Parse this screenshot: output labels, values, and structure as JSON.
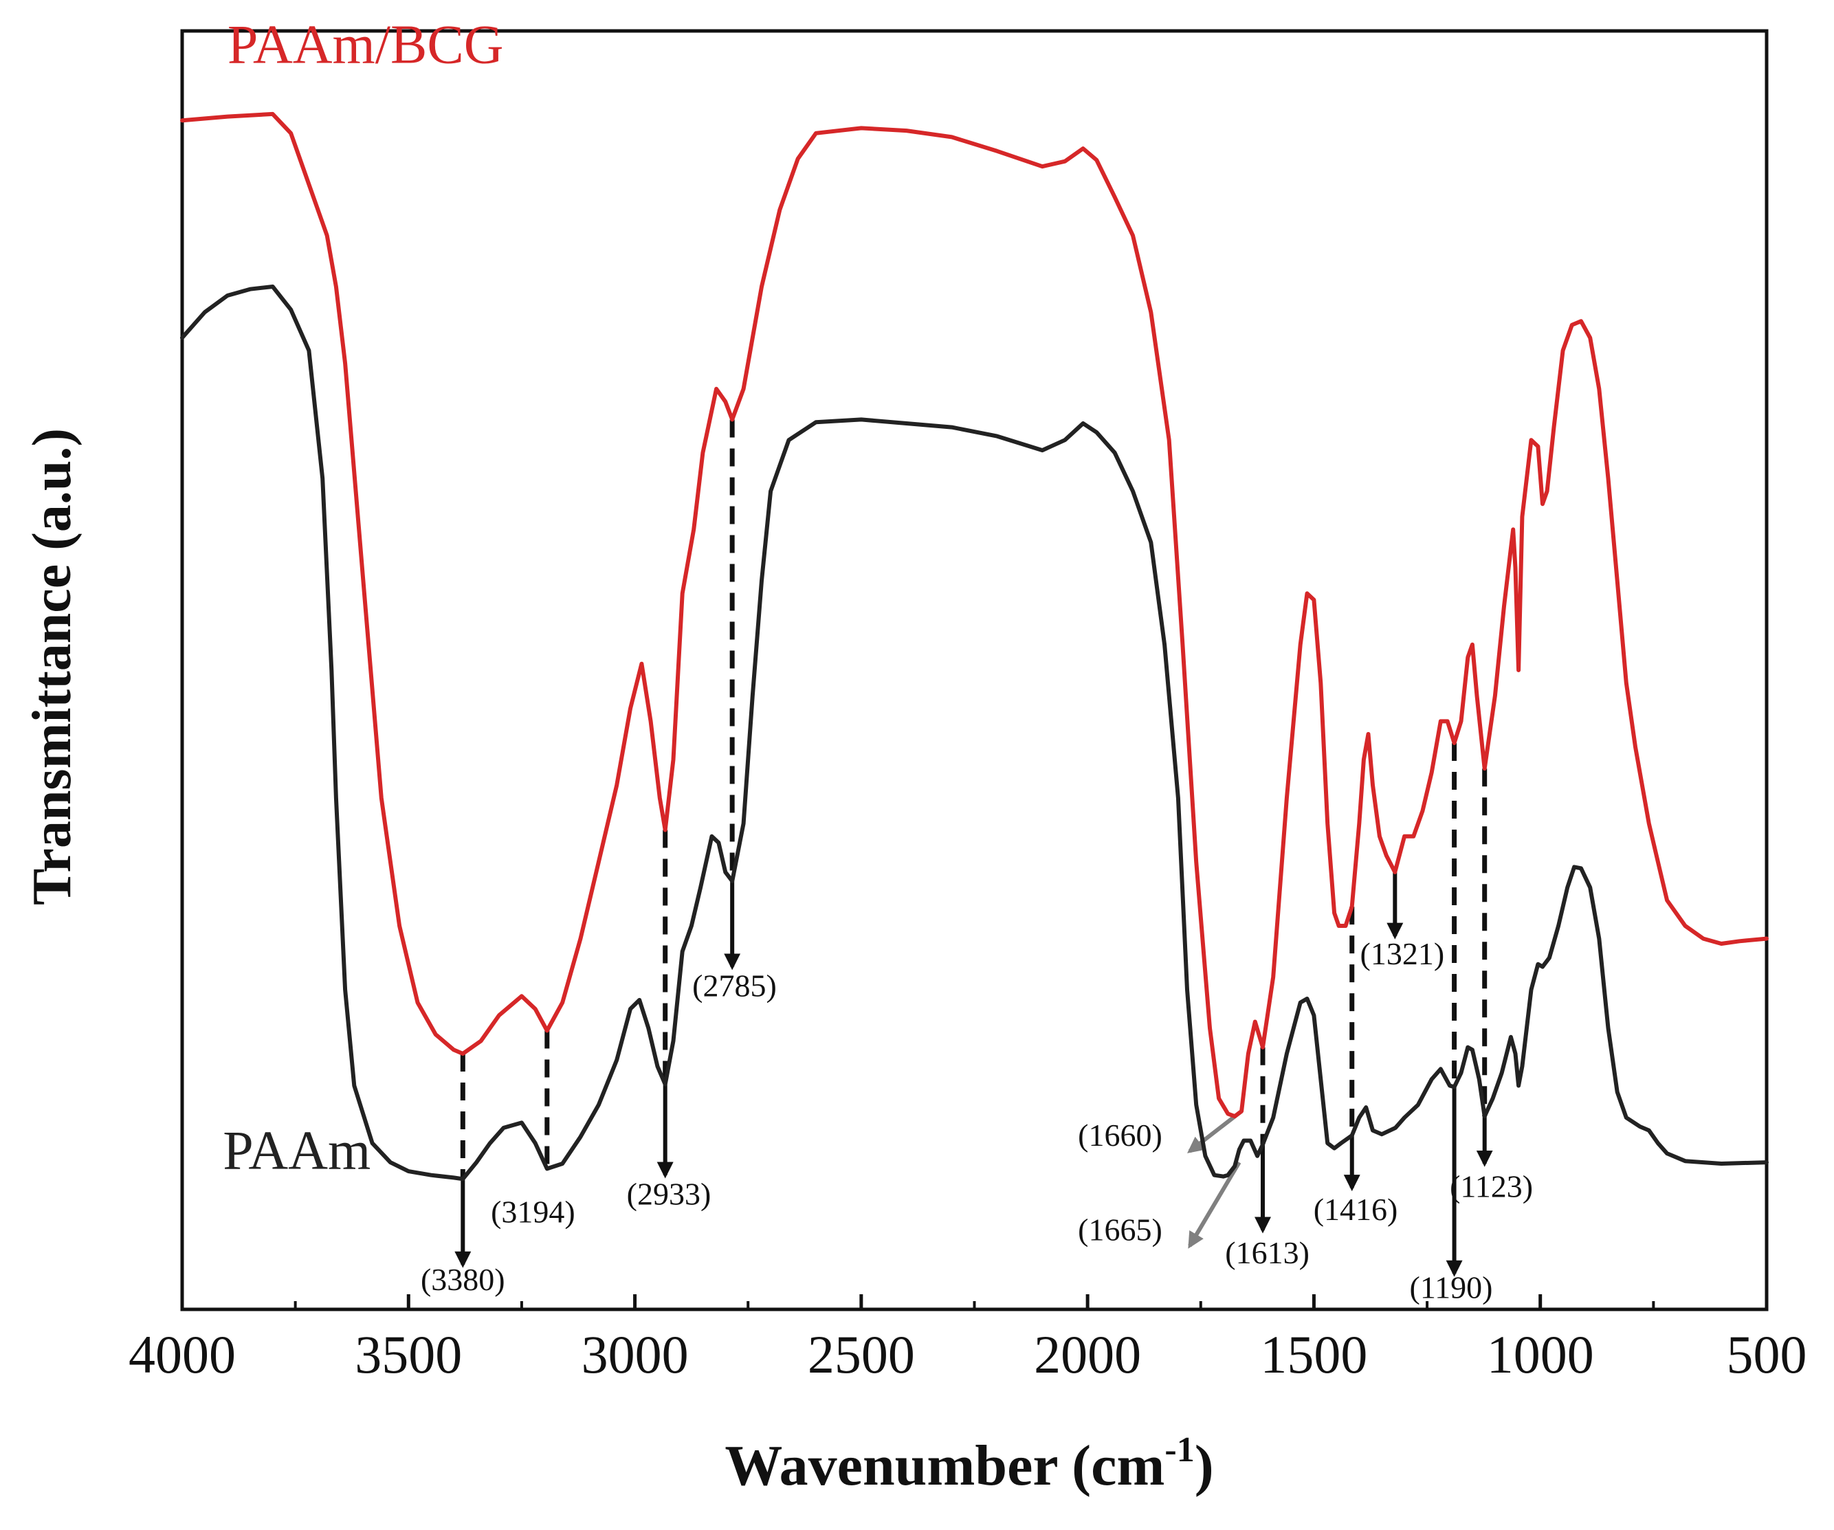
{
  "chart_data": {
    "type": "line",
    "xlabel": "Wavenumber (cm",
    "xlabel_sup": "-1",
    "xlabel_close": ")",
    "ylabel": "Transmittance (a.u.)",
    "xlim": [
      4000,
      500
    ],
    "ylim": [
      0,
      100
    ],
    "y_tick_labels": false,
    "x_ticks": [
      4000,
      3500,
      3000,
      2500,
      2000,
      1500,
      1000,
      500
    ],
    "x_tick_labels": [
      "4000",
      "3500",
      "3000",
      "2500",
      "2000",
      "1500",
      "1000",
      "500"
    ],
    "colors": {
      "PAAm/BCG": "#d62728",
      "PAAm": "#222222",
      "arrow": "#111111",
      "arrow_gray": "#808080"
    },
    "series": [
      {
        "name": "PAAm/BCG",
        "color": "#d62728",
        "points": [
          [
            4000,
            93
          ],
          [
            3900,
            93.3
          ],
          [
            3800,
            93.5
          ],
          [
            3760,
            92
          ],
          [
            3720,
            88
          ],
          [
            3680,
            84
          ],
          [
            3660,
            80
          ],
          [
            3640,
            74
          ],
          [
            3600,
            57
          ],
          [
            3560,
            40
          ],
          [
            3520,
            30
          ],
          [
            3480,
            24
          ],
          [
            3440,
            21.5
          ],
          [
            3400,
            20.3
          ],
          [
            3380,
            20
          ],
          [
            3340,
            21
          ],
          [
            3300,
            23
          ],
          [
            3250,
            24.5
          ],
          [
            3220,
            23.5
          ],
          [
            3194,
            21.8
          ],
          [
            3160,
            24
          ],
          [
            3120,
            29
          ],
          [
            3080,
            35
          ],
          [
            3040,
            41
          ],
          [
            3010,
            47
          ],
          [
            2985,
            50.5
          ],
          [
            2965,
            46
          ],
          [
            2945,
            40
          ],
          [
            2933,
            37.5
          ],
          [
            2915,
            43
          ],
          [
            2895,
            56
          ],
          [
            2870,
            61
          ],
          [
            2850,
            67
          ],
          [
            2820,
            72
          ],
          [
            2800,
            71
          ],
          [
            2785,
            69.6
          ],
          [
            2760,
            72
          ],
          [
            2720,
            80
          ],
          [
            2680,
            86
          ],
          [
            2640,
            90
          ],
          [
            2600,
            92
          ],
          [
            2500,
            92.4
          ],
          [
            2400,
            92.2
          ],
          [
            2300,
            91.7
          ],
          [
            2200,
            90.6
          ],
          [
            2100,
            89.4
          ],
          [
            2050,
            89.8
          ],
          [
            2010,
            90.8
          ],
          [
            1980,
            89.9
          ],
          [
            1940,
            87
          ],
          [
            1900,
            84
          ],
          [
            1860,
            78
          ],
          [
            1820,
            68
          ],
          [
            1790,
            52
          ],
          [
            1760,
            35
          ],
          [
            1730,
            22
          ],
          [
            1710,
            16.5
          ],
          [
            1690,
            15.3
          ],
          [
            1675,
            15.1
          ],
          [
            1660,
            15.5
          ],
          [
            1645,
            20
          ],
          [
            1630,
            22.5
          ],
          [
            1613,
            20.5
          ],
          [
            1590,
            26
          ],
          [
            1560,
            40
          ],
          [
            1530,
            52
          ],
          [
            1515,
            56
          ],
          [
            1500,
            55.5
          ],
          [
            1485,
            49
          ],
          [
            1470,
            38
          ],
          [
            1455,
            31
          ],
          [
            1445,
            30
          ],
          [
            1430,
            30
          ],
          [
            1416,
            31.5
          ],
          [
            1400,
            38
          ],
          [
            1390,
            43
          ],
          [
            1380,
            45
          ],
          [
            1370,
            41
          ],
          [
            1355,
            37
          ],
          [
            1340,
            35.5
          ],
          [
            1321,
            34.2
          ],
          [
            1300,
            37
          ],
          [
            1280,
            37
          ],
          [
            1260,
            39
          ],
          [
            1240,
            42
          ],
          [
            1220,
            46
          ],
          [
            1205,
            46
          ],
          [
            1190,
            44.3
          ],
          [
            1175,
            46
          ],
          [
            1160,
            51
          ],
          [
            1150,
            52
          ],
          [
            1140,
            48
          ],
          [
            1123,
            42.3
          ],
          [
            1100,
            48
          ],
          [
            1080,
            55
          ],
          [
            1060,
            61
          ],
          [
            1055,
            58
          ],
          [
            1048,
            50
          ],
          [
            1040,
            62
          ],
          [
            1020,
            68
          ],
          [
            1005,
            67.5
          ],
          [
            995,
            63
          ],
          [
            985,
            64
          ],
          [
            970,
            69
          ],
          [
            950,
            75
          ],
          [
            930,
            77
          ],
          [
            910,
            77.3
          ],
          [
            890,
            76
          ],
          [
            870,
            72
          ],
          [
            850,
            65
          ],
          [
            830,
            57
          ],
          [
            810,
            49
          ],
          [
            790,
            44
          ],
          [
            760,
            38
          ],
          [
            740,
            35
          ],
          [
            720,
            32
          ],
          [
            680,
            30
          ],
          [
            640,
            29
          ],
          [
            600,
            28.6
          ],
          [
            560,
            28.8
          ],
          [
            500,
            29
          ]
        ]
      },
      {
        "name": "PAAm",
        "color": "#222222",
        "points": [
          [
            4000,
            76
          ],
          [
            3950,
            78
          ],
          [
            3900,
            79.3
          ],
          [
            3850,
            79.8
          ],
          [
            3800,
            80
          ],
          [
            3760,
            78.2
          ],
          [
            3720,
            75
          ],
          [
            3690,
            65
          ],
          [
            3670,
            50
          ],
          [
            3660,
            40
          ],
          [
            3640,
            25
          ],
          [
            3620,
            17.5
          ],
          [
            3580,
            13
          ],
          [
            3540,
            11.5
          ],
          [
            3500,
            10.8
          ],
          [
            3450,
            10.5
          ],
          [
            3400,
            10.3
          ],
          [
            3380,
            10.2
          ],
          [
            3350,
            11.5
          ],
          [
            3320,
            13
          ],
          [
            3290,
            14.2
          ],
          [
            3250,
            14.6
          ],
          [
            3220,
            13
          ],
          [
            3194,
            11
          ],
          [
            3160,
            11.4
          ],
          [
            3120,
            13.5
          ],
          [
            3080,
            16
          ],
          [
            3040,
            19.5
          ],
          [
            3010,
            23.5
          ],
          [
            2990,
            24.2
          ],
          [
            2970,
            22
          ],
          [
            2950,
            19
          ],
          [
            2933,
            17.6
          ],
          [
            2915,
            21
          ],
          [
            2895,
            28
          ],
          [
            2875,
            30
          ],
          [
            2855,
            33
          ],
          [
            2830,
            37
          ],
          [
            2815,
            36.5
          ],
          [
            2800,
            34.2
          ],
          [
            2785,
            33.5
          ],
          [
            2760,
            38
          ],
          [
            2740,
            48
          ],
          [
            2720,
            57
          ],
          [
            2700,
            64
          ],
          [
            2660,
            68
          ],
          [
            2600,
            69.4
          ],
          [
            2500,
            69.6
          ],
          [
            2400,
            69.3
          ],
          [
            2300,
            69
          ],
          [
            2200,
            68.3
          ],
          [
            2100,
            67.2
          ],
          [
            2050,
            68
          ],
          [
            2010,
            69.3
          ],
          [
            1980,
            68.6
          ],
          [
            1940,
            67
          ],
          [
            1900,
            64
          ],
          [
            1860,
            60
          ],
          [
            1830,
            52
          ],
          [
            1800,
            40
          ],
          [
            1780,
            25
          ],
          [
            1760,
            16
          ],
          [
            1740,
            12
          ],
          [
            1720,
            10.5
          ],
          [
            1700,
            10.4
          ],
          [
            1690,
            10.5
          ],
          [
            1675,
            11.2
          ],
          [
            1665,
            12.5
          ],
          [
            1655,
            13.2
          ],
          [
            1640,
            13.2
          ],
          [
            1625,
            12
          ],
          [
            1613,
            12.9
          ],
          [
            1590,
            15
          ],
          [
            1560,
            20
          ],
          [
            1530,
            24
          ],
          [
            1515,
            24.3
          ],
          [
            1500,
            23
          ],
          [
            1485,
            18
          ],
          [
            1470,
            13
          ],
          [
            1455,
            12.6
          ],
          [
            1440,
            13
          ],
          [
            1416,
            13.6
          ],
          [
            1400,
            15
          ],
          [
            1385,
            15.8
          ],
          [
            1370,
            14
          ],
          [
            1350,
            13.7
          ],
          [
            1320,
            14.2
          ],
          [
            1300,
            15
          ],
          [
            1270,
            16
          ],
          [
            1240,
            18
          ],
          [
            1220,
            18.8
          ],
          [
            1200,
            17.5
          ],
          [
            1190,
            17.4
          ],
          [
            1175,
            18.5
          ],
          [
            1160,
            20.5
          ],
          [
            1150,
            20.3
          ],
          [
            1135,
            18
          ],
          [
            1123,
            15.1
          ],
          [
            1105,
            16.5
          ],
          [
            1085,
            18.5
          ],
          [
            1065,
            21.3
          ],
          [
            1055,
            20
          ],
          [
            1048,
            17.5
          ],
          [
            1040,
            19
          ],
          [
            1020,
            25
          ],
          [
            1005,
            27
          ],
          [
            995,
            26.8
          ],
          [
            980,
            27.5
          ],
          [
            960,
            30
          ],
          [
            940,
            33
          ],
          [
            925,
            34.6
          ],
          [
            910,
            34.5
          ],
          [
            890,
            33
          ],
          [
            870,
            29
          ],
          [
            850,
            22
          ],
          [
            830,
            17
          ],
          [
            810,
            15
          ],
          [
            780,
            14.3
          ],
          [
            760,
            14
          ],
          [
            740,
            13
          ],
          [
            720,
            12.2
          ],
          [
            680,
            11.6
          ],
          [
            640,
            11.5
          ],
          [
            600,
            11.4
          ],
          [
            500,
            11.5
          ]
        ]
      }
    ],
    "series_labels": [
      {
        "text": "PAAm/BCG",
        "series": "PAAm/BCG",
        "x": 3900,
        "y": 97.5
      },
      {
        "text": "PAAm",
        "series": "PAAm",
        "x": 3910,
        "y": 11
      }
    ],
    "annotations": [
      {
        "label": "(3380)",
        "x": 3380,
        "line_from": 20,
        "line_to": 10.2,
        "arrow_to": 3.5,
        "label_x": 3380,
        "label_y": 1.5,
        "color": "#111111"
      },
      {
        "label": "(3194)",
        "x": 3194,
        "line_from": 21.8,
        "line_to": 11,
        "arrow_to": 11,
        "label_x": 3225,
        "label_y": 6.8,
        "color": "#111111"
      },
      {
        "label": "(2933)",
        "x": 2933,
        "line_from": 37.5,
        "line_to": 17.6,
        "arrow_to": 10.5,
        "label_x": 2925,
        "label_y": 8.2,
        "color": "#111111"
      },
      {
        "label": "(2785)",
        "x": 2785,
        "line_from": 69.6,
        "line_to": 33.5,
        "arrow_to": 26.8,
        "label_x": 2780,
        "label_y": 24.5,
        "color": "#111111"
      },
      {
        "label": "(1660)",
        "x": 1660,
        "line_from": 15.5,
        "line_to": 15.5,
        "arrow_to": 15.5,
        "label_x": 1835,
        "label_y": 12.8,
        "color": "#808080"
      },
      {
        "label": "(1665)",
        "x": 1665,
        "line_from": 11.5,
        "line_to": 11.5,
        "arrow_to": 11.5,
        "label_x": 1835,
        "label_y": 5.4,
        "color": "#808080"
      },
      {
        "label": "(1613)",
        "x": 1613,
        "line_from": 20.5,
        "line_to": 12.9,
        "arrow_to": 6.2,
        "label_x": 1603,
        "label_y": 3.6,
        "color": "#111111"
      },
      {
        "label": "(1416)",
        "x": 1416,
        "line_from": 31.5,
        "line_to": 13.6,
        "arrow_to": 9.5,
        "label_x": 1408,
        "label_y": 7.0,
        "color": "#111111"
      },
      {
        "label": "(1321)",
        "x": 1321,
        "line_from": 34.2,
        "line_to": 34.2,
        "arrow_to": 29.2,
        "label_x": 1305,
        "label_y": 27.0,
        "color": "#111111"
      },
      {
        "label": "(1190)",
        "x": 1190,
        "line_from": 44.3,
        "line_to": 17.4,
        "arrow_to": 2.8,
        "label_x": 1197,
        "label_y": 0.9,
        "color": "#111111"
      },
      {
        "label": "(1123)",
        "x": 1123,
        "line_from": 42.3,
        "line_to": 15.1,
        "arrow_to": 11.4,
        "label_x": 1108,
        "label_y": 8.8,
        "color": "#111111"
      }
    ]
  }
}
